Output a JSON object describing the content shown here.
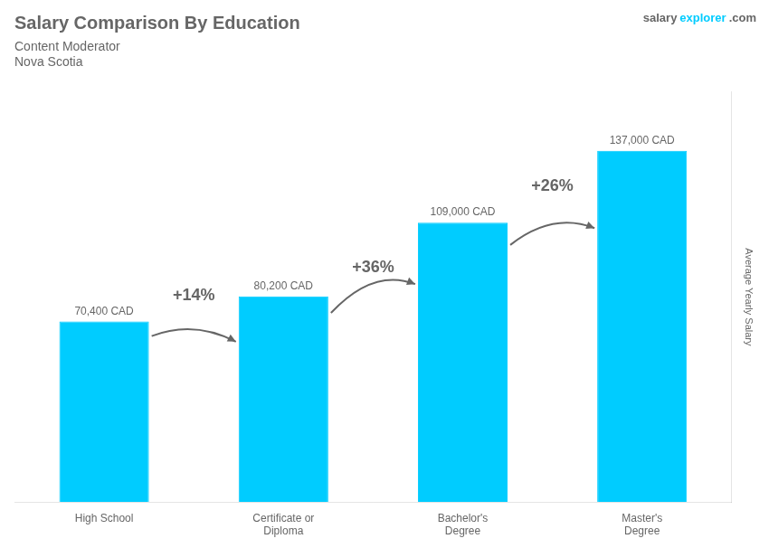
{
  "chart_data": {
    "type": "bar",
    "title": "Salary Comparison By Education",
    "subtitle": [
      "Content Moderator",
      "Nova Scotia"
    ],
    "ylabel": "Average Yearly Salary",
    "categories": [
      "High School",
      "Certificate or\nDiploma",
      "Bachelor's\nDegree",
      "Master's\nDegree"
    ],
    "values": [
      70400,
      80200,
      109000,
      137000
    ],
    "value_labels": [
      "70,400 CAD",
      "80,200 CAD",
      "109,000 CAD",
      "137,000 CAD"
    ],
    "data_labels": true,
    "color": "#00ccff",
    "ylim": [
      0,
      160000
    ],
    "grid": false,
    "tick_labels": "x",
    "annotations": [
      {
        "text": "+14%",
        "between": [
          "High School",
          "Certificate or\nDiploma"
        ]
      },
      {
        "text": "+36%",
        "between": [
          "Certificate or\nDiploma",
          "Bachelor's\nDegree"
        ]
      },
      {
        "text": "+26%",
        "between": [
          "Bachelor's\nDegree",
          "Master's\nDegree"
        ]
      },
      {
        "text": "salary"
      },
      {
        "text": "explorer",
        "color": "#00ccff"
      },
      {
        "text": ".com"
      }
    ]
  }
}
